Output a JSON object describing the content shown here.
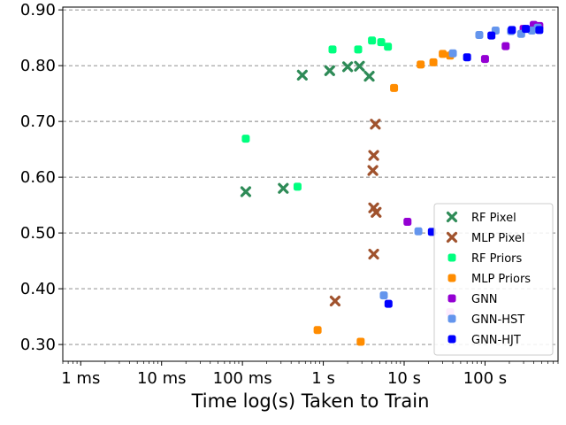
{
  "chart_data": {
    "type": "scatter",
    "title": "",
    "xlabel": "Time log(s) Taken to Train",
    "ylabel": "",
    "x_scale": "log",
    "xlim": [
      0.0006,
      800
    ],
    "ylim": [
      0.27,
      0.905
    ],
    "x_ticks": [
      {
        "value": 0.001,
        "label": "1 ms"
      },
      {
        "value": 0.01,
        "label": "10 ms"
      },
      {
        "value": 0.1,
        "label": "100 ms"
      },
      {
        "value": 1,
        "label": "1 s"
      },
      {
        "value": 10,
        "label": "10 s"
      },
      {
        "value": 100,
        "label": "100 s"
      }
    ],
    "y_ticks": [
      {
        "value": 0.3,
        "label": "0.30"
      },
      {
        "value": 0.4,
        "label": "0.40"
      },
      {
        "value": 0.5,
        "label": "0.50"
      },
      {
        "value": 0.6,
        "label": "0.60"
      },
      {
        "value": 0.7,
        "label": "0.70"
      },
      {
        "value": 0.8,
        "label": "0.80"
      },
      {
        "value": 0.9,
        "label": "0.90"
      }
    ],
    "grid": "y-dashed",
    "legend_position": "lower-right",
    "series": [
      {
        "name": "RF Pixel",
        "color": "#2e8b57",
        "marker": "X",
        "points": [
          [
            0.11,
            0.574
          ],
          [
            0.32,
            0.58
          ],
          [
            0.55,
            0.783
          ],
          [
            1.2,
            0.791
          ],
          [
            2.0,
            0.798
          ],
          [
            2.8,
            0.799
          ],
          [
            3.7,
            0.781
          ]
        ]
      },
      {
        "name": "MLP Pixel",
        "color": "#a0522d",
        "marker": "X",
        "points": [
          [
            1.4,
            0.378
          ],
          [
            4.2,
            0.462
          ],
          [
            4.1,
            0.612
          ],
          [
            4.2,
            0.639
          ],
          [
            4.4,
            0.695
          ],
          [
            4.2,
            0.545
          ],
          [
            4.5,
            0.537
          ]
        ]
      },
      {
        "name": "RF Priors",
        "color": "#00ff7f",
        "marker": "s",
        "points": [
          [
            0.11,
            0.669
          ],
          [
            0.48,
            0.583
          ],
          [
            1.3,
            0.829
          ],
          [
            2.7,
            0.829
          ],
          [
            4.0,
            0.845
          ],
          [
            5.2,
            0.842
          ],
          [
            6.3,
            0.834
          ]
        ]
      },
      {
        "name": "MLP Priors",
        "color": "#ff8c00",
        "marker": "s",
        "points": [
          [
            0.85,
            0.326
          ],
          [
            2.9,
            0.305
          ],
          [
            7.5,
            0.76
          ],
          [
            16,
            0.802
          ],
          [
            23,
            0.806
          ],
          [
            30,
            0.821
          ],
          [
            37,
            0.818
          ]
        ]
      },
      {
        "name": "GNN",
        "color": "#9400d3",
        "marker": "s",
        "points": [
          [
            11,
            0.52
          ],
          [
            100,
            0.812
          ],
          [
            180,
            0.835
          ],
          [
            300,
            0.866
          ],
          [
            400,
            0.873
          ],
          [
            470,
            0.871
          ]
        ]
      },
      {
        "name": "GNN-HST",
        "color": "#6495ed",
        "marker": "s",
        "points": [
          [
            5.6,
            0.388
          ],
          [
            15,
            0.503
          ],
          [
            40,
            0.822
          ],
          [
            85,
            0.855
          ],
          [
            135,
            0.863
          ],
          [
            210,
            0.862
          ],
          [
            280,
            0.857
          ],
          [
            380,
            0.863
          ],
          [
            450,
            0.868
          ]
        ]
      },
      {
        "name": "GNN-HJT",
        "color": "#0000ff",
        "marker": "s",
        "points": [
          [
            6.4,
            0.373
          ],
          [
            22,
            0.502
          ],
          [
            60,
            0.815
          ],
          [
            120,
            0.854
          ],
          [
            215,
            0.864
          ],
          [
            320,
            0.866
          ],
          [
            470,
            0.864
          ]
        ]
      }
    ],
    "annotations": [
      {
        "x": 37,
        "y": 0.358,
        "color": "#ee82ee",
        "marker": "s"
      }
    ]
  }
}
